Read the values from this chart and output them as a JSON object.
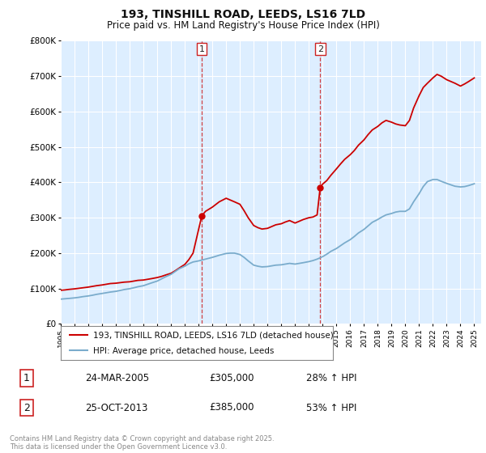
{
  "title": "193, TINSHILL ROAD, LEEDS, LS16 7LD",
  "subtitle": "Price paid vs. HM Land Registry's House Price Index (HPI)",
  "ylim": [
    0,
    800000
  ],
  "yticks": [
    0,
    100000,
    200000,
    300000,
    400000,
    500000,
    600000,
    700000,
    800000
  ],
  "ytick_labels": [
    "£0",
    "£100K",
    "£200K",
    "£300K",
    "£400K",
    "£500K",
    "£600K",
    "£700K",
    "£800K"
  ],
  "red_line_color": "#cc0000",
  "blue_line_color": "#7aaccc",
  "background_color": "#ddeeff",
  "grid_color": "#ffffff",
  "purchase1": {
    "date": "24-MAR-2005",
    "price": 305000,
    "label": "1",
    "year": 2005.23
  },
  "purchase2": {
    "date": "25-OCT-2013",
    "price": 385000,
    "label": "2",
    "year": 2013.82
  },
  "legend_label_red": "193, TINSHILL ROAD, LEEDS, LS16 7LD (detached house)",
  "legend_label_blue": "HPI: Average price, detached house, Leeds",
  "footer": "Contains HM Land Registry data © Crown copyright and database right 2025.\nThis data is licensed under the Open Government Licence v3.0.",
  "sale_table": [
    {
      "num": "1",
      "date": "24-MAR-2005",
      "price": "£305,000",
      "hpi": "28% ↑ HPI"
    },
    {
      "num": "2",
      "date": "25-OCT-2013",
      "price": "£385,000",
      "hpi": "53% ↑ HPI"
    }
  ],
  "red_x": [
    1995.0,
    1995.3,
    1995.6,
    1996.0,
    1996.3,
    1996.6,
    1997.0,
    1997.3,
    1997.6,
    1998.0,
    1998.3,
    1998.6,
    1999.0,
    1999.3,
    1999.6,
    2000.0,
    2000.3,
    2000.6,
    2001.0,
    2001.3,
    2001.6,
    2002.0,
    2002.3,
    2002.6,
    2003.0,
    2003.3,
    2003.6,
    2004.0,
    2004.3,
    2004.6,
    2005.23,
    2005.5,
    2006.0,
    2006.5,
    2007.0,
    2007.3,
    2007.6,
    2008.0,
    2008.3,
    2008.6,
    2009.0,
    2009.3,
    2009.6,
    2010.0,
    2010.3,
    2010.6,
    2011.0,
    2011.3,
    2011.6,
    2012.0,
    2012.3,
    2012.6,
    2013.0,
    2013.3,
    2013.6,
    2013.82,
    2014.0,
    2014.3,
    2014.6,
    2015.0,
    2015.3,
    2015.6,
    2016.0,
    2016.3,
    2016.6,
    2017.0,
    2017.3,
    2017.6,
    2018.0,
    2018.3,
    2018.6,
    2019.0,
    2019.3,
    2019.6,
    2020.0,
    2020.3,
    2020.6,
    2021.0,
    2021.3,
    2021.6,
    2022.0,
    2022.3,
    2022.6,
    2023.0,
    2023.3,
    2023.6,
    2024.0,
    2024.3,
    2024.6,
    2025.0
  ],
  "red_y": [
    95000,
    96000,
    97500,
    99000,
    100500,
    102000,
    104000,
    106000,
    108000,
    110000,
    112000,
    114000,
    115000,
    116500,
    118000,
    119000,
    121000,
    123000,
    124000,
    126000,
    128000,
    131000,
    134000,
    138000,
    143000,
    150000,
    158000,
    168000,
    182000,
    200000,
    305000,
    318000,
    330000,
    345000,
    355000,
    350000,
    345000,
    338000,
    320000,
    300000,
    278000,
    272000,
    268000,
    270000,
    275000,
    280000,
    283000,
    288000,
    292000,
    285000,
    290000,
    295000,
    300000,
    302000,
    308000,
    385000,
    395000,
    405000,
    420000,
    438000,
    452000,
    465000,
    478000,
    490000,
    505000,
    520000,
    535000,
    548000,
    558000,
    568000,
    575000,
    570000,
    565000,
    562000,
    560000,
    575000,
    610000,
    645000,
    668000,
    680000,
    695000,
    705000,
    700000,
    690000,
    685000,
    680000,
    672000,
    678000,
    685000,
    695000
  ],
  "blue_x": [
    1995.0,
    1995.3,
    1995.6,
    1996.0,
    1996.3,
    1996.6,
    1997.0,
    1997.3,
    1997.6,
    1998.0,
    1998.3,
    1998.6,
    1999.0,
    1999.3,
    1999.6,
    2000.0,
    2000.3,
    2000.6,
    2001.0,
    2001.3,
    2001.6,
    2002.0,
    2002.3,
    2002.6,
    2003.0,
    2003.3,
    2003.6,
    2004.0,
    2004.3,
    2004.6,
    2005.0,
    2005.3,
    2005.6,
    2006.0,
    2006.5,
    2007.0,
    2007.3,
    2007.6,
    2008.0,
    2008.3,
    2008.6,
    2009.0,
    2009.3,
    2009.6,
    2010.0,
    2010.3,
    2010.6,
    2011.0,
    2011.3,
    2011.6,
    2012.0,
    2012.3,
    2012.6,
    2013.0,
    2013.3,
    2013.6,
    2014.0,
    2014.3,
    2014.6,
    2015.0,
    2015.3,
    2015.6,
    2016.0,
    2016.3,
    2016.6,
    2017.0,
    2017.3,
    2017.6,
    2018.0,
    2018.3,
    2018.6,
    2019.0,
    2019.3,
    2019.6,
    2020.0,
    2020.3,
    2020.6,
    2021.0,
    2021.3,
    2021.6,
    2022.0,
    2022.3,
    2022.6,
    2023.0,
    2023.3,
    2023.6,
    2024.0,
    2024.3,
    2024.6,
    2025.0
  ],
  "blue_y": [
    70000,
    71000,
    72000,
    73500,
    75000,
    77000,
    79000,
    81000,
    83500,
    86000,
    88000,
    90000,
    92000,
    94500,
    97000,
    99500,
    102000,
    105000,
    108000,
    112000,
    116000,
    121000,
    127000,
    133000,
    140000,
    148000,
    156000,
    163000,
    170000,
    175000,
    178000,
    181000,
    184000,
    188000,
    194000,
    199000,
    200000,
    200000,
    196000,
    188000,
    178000,
    166000,
    163000,
    161000,
    162000,
    164000,
    166000,
    167000,
    169000,
    171000,
    169000,
    171000,
    173000,
    176000,
    179000,
    183000,
    190000,
    197000,
    205000,
    213000,
    221000,
    229000,
    238000,
    247000,
    257000,
    267000,
    277000,
    287000,
    295000,
    302000,
    308000,
    312000,
    316000,
    318000,
    318000,
    325000,
    345000,
    368000,
    388000,
    402000,
    408000,
    408000,
    403000,
    397000,
    393000,
    389000,
    387000,
    388000,
    391000,
    396000
  ]
}
